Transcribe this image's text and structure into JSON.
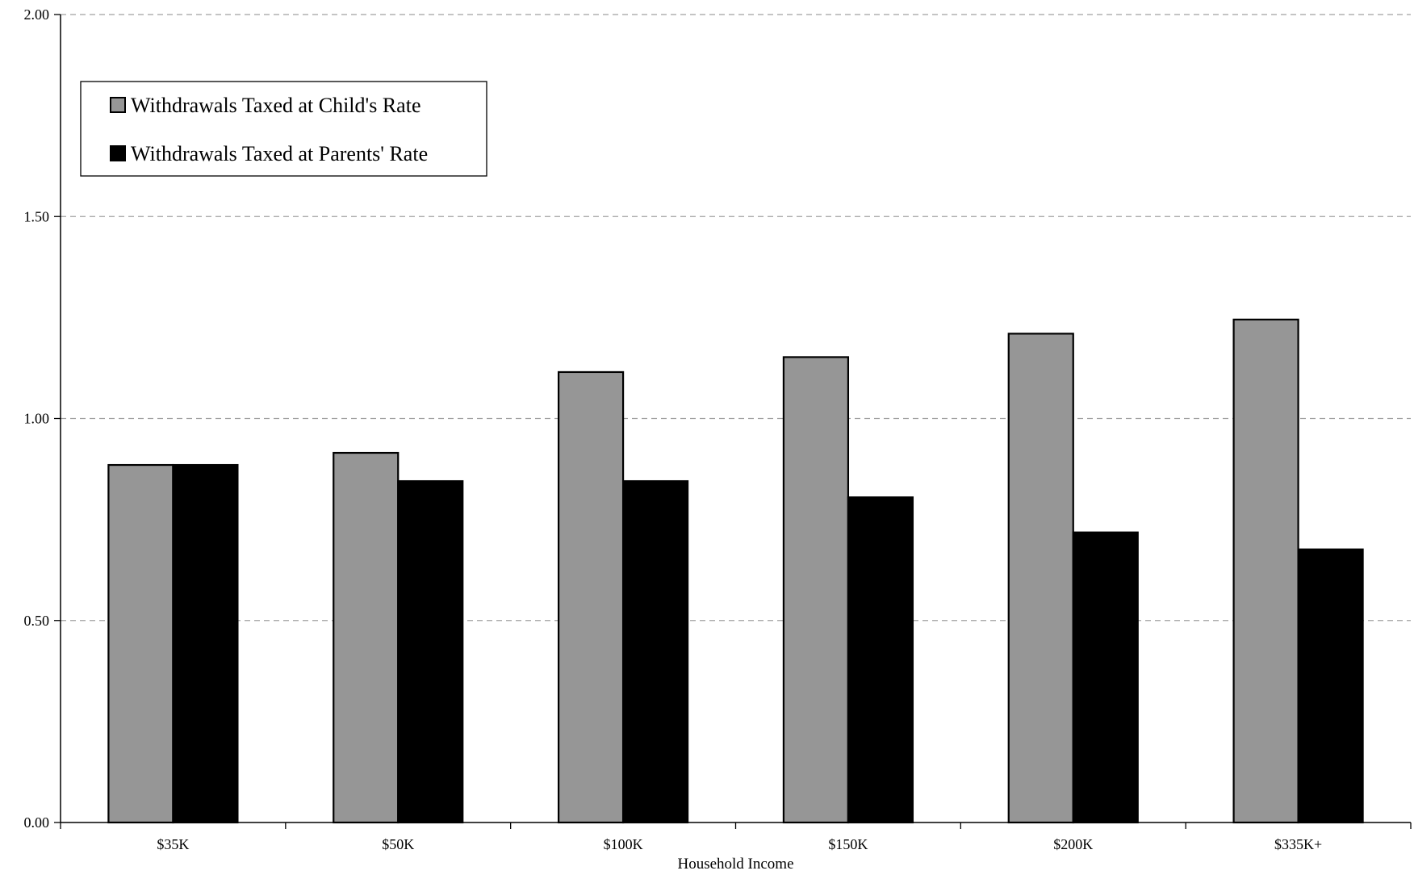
{
  "chart_data": {
    "type": "bar",
    "title": "",
    "xlabel": "Household Income",
    "ylabel": "",
    "categories": [
      "$35K",
      "$50K",
      "$100K",
      "$150K",
      "$200K",
      "$335K+"
    ],
    "series": [
      {
        "name": "Withdrawals Taxed at Child's Rate",
        "color": "#969696",
        "values": [
          0.885,
          0.915,
          1.115,
          1.152,
          1.21,
          1.245
        ]
      },
      {
        "name": "Withdrawals Taxed at Parents' Rate",
        "color": "#000000",
        "values": [
          0.885,
          0.845,
          0.845,
          0.805,
          0.718,
          0.676
        ]
      }
    ],
    "ylim": [
      0,
      2
    ],
    "yticks": [
      "0.00",
      "0.50",
      "1.00",
      "1.50",
      "2.00"
    ],
    "grid": true,
    "legend_position": "top-left"
  }
}
